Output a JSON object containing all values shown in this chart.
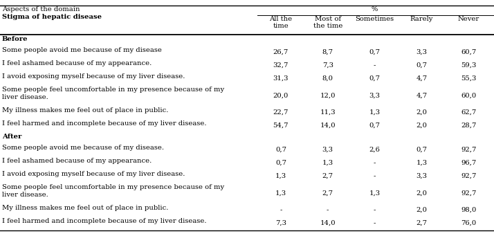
{
  "left_header_line1": "Aspects of the domain",
  "left_header_line2": "Stigma of hepatic disease",
  "sub_headers": [
    "All the\ntime",
    "Most of\nthe time",
    "Sometimes",
    "Rarely",
    "Never"
  ],
  "sections": [
    {
      "section_label": "Before",
      "rows": [
        {
          "label": "Some people avoid me because of my disease",
          "label2": "",
          "values": [
            "26,7",
            "8,7",
            "0,7",
            "3,3",
            "60,7"
          ]
        },
        {
          "label": "I feel ashamed because of my appearance.",
          "label2": "",
          "values": [
            "32,7",
            "7,3",
            "-",
            "0,7",
            "59,3"
          ]
        },
        {
          "label": "I avoid exposing myself because of my liver disease.",
          "label2": "",
          "values": [
            "31,3",
            "8,0",
            "0,7",
            "4,7",
            "55,3"
          ]
        },
        {
          "label": "Some people feel uncomfortable in my presence because of my",
          "label2": "liver disease.",
          "values": [
            "20,0",
            "12,0",
            "3,3",
            "4,7",
            "60,0"
          ]
        },
        {
          "label": "My illness makes me feel out of place in public.",
          "label2": "",
          "values": [
            "22,7",
            "11,3",
            "1,3",
            "2,0",
            "62,7"
          ]
        },
        {
          "label": "I feel harmed and incomplete because of my liver disease.",
          "label2": "",
          "values": [
            "54,7",
            "14,0",
            "0,7",
            "2,0",
            "28,7"
          ]
        }
      ]
    },
    {
      "section_label": "After",
      "rows": [
        {
          "label": "Some people avoid me because of my disease.",
          "label2": "",
          "values": [
            "0,7",
            "3,3",
            "2,6",
            "0,7",
            "92,7"
          ]
        },
        {
          "label": "I feel ashamed because of my appearance.",
          "label2": "",
          "values": [
            "0,7",
            "1,3",
            "-",
            "1,3",
            "96,7"
          ]
        },
        {
          "label": "I avoid exposing myself because of my liver disease.",
          "label2": "",
          "values": [
            "1,3",
            "2,7",
            "-",
            "3,3",
            "92,7"
          ]
        },
        {
          "label": "Some people feel uncomfortable in my presence because of my",
          "label2": "liver disease.",
          "values": [
            "1,3",
            "2,7",
            "1,3",
            "2,0",
            "92,7"
          ]
        },
        {
          "label": "My illness makes me feel out of place in public.",
          "label2": "",
          "values": [
            "-",
            "-",
            "-",
            "2,0",
            "98,0"
          ]
        },
        {
          "label": "I feel harmed and incomplete because of my liver disease.",
          "label2": "",
          "values": [
            "7,3",
            "14,0",
            "-",
            "2,7",
            "76,0"
          ]
        }
      ]
    }
  ]
}
